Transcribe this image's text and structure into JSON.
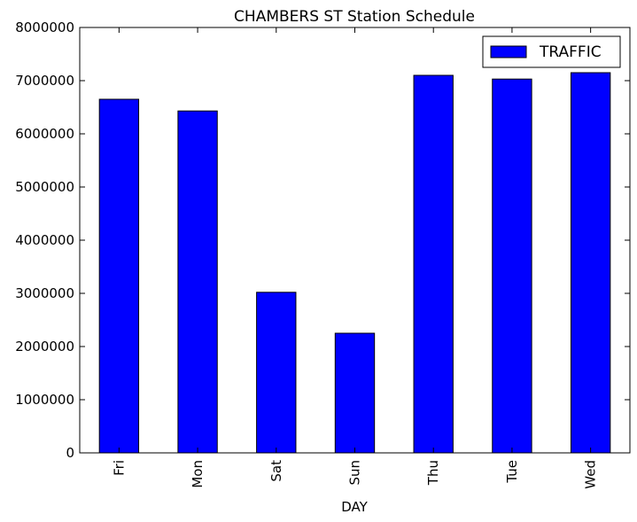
{
  "chart_data": {
    "type": "bar",
    "title": "CHAMBERS ST Station Schedule",
    "xlabel": "DAY",
    "ylabel": "",
    "categories": [
      "Fri",
      "Mon",
      "Sat",
      "Sun",
      "Thu",
      "Tue",
      "Wed"
    ],
    "series": [
      {
        "name": "TRAFFIC",
        "color": "#0000ff",
        "values": [
          6650000,
          6430000,
          3020000,
          2250000,
          7100000,
          7030000,
          7150000
        ]
      }
    ],
    "ylim": [
      0,
      8000000
    ],
    "yticks": [
      "0",
      "1000000",
      "2000000",
      "3000000",
      "4000000",
      "5000000",
      "6000000",
      "7000000",
      "8000000"
    ],
    "ytick_values": [
      0,
      1000000,
      2000000,
      3000000,
      4000000,
      5000000,
      6000000,
      7000000,
      8000000
    ],
    "grid": false,
    "legend_position": "top-right"
  }
}
